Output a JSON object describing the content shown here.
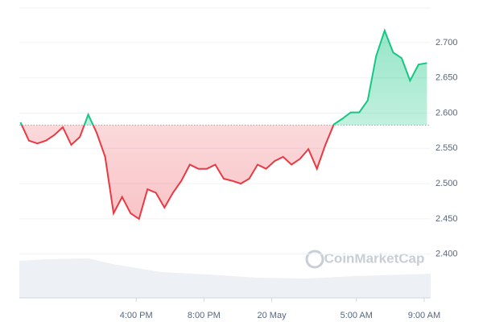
{
  "chart_data": {
    "type": "line",
    "watermark": "CoinMarketCap",
    "x": [
      "19 May 09:10",
      "19 May 09:40",
      "19 May 10:10",
      "19 May 10:40",
      "19 May 11:10",
      "19 May 11:40",
      "19 May 12:10",
      "19 May 12:40",
      "19 May 13:10",
      "19 May 13:40",
      "19 May 14:10",
      "19 May 14:40",
      "19 May 15:10",
      "19 May 15:40",
      "19 May 16:10",
      "19 May 16:40",
      "19 May 17:10",
      "19 May 17:40",
      "19 May 18:10",
      "19 May 18:40",
      "19 May 19:10",
      "19 May 19:40",
      "19 May 20:10",
      "19 May 20:40",
      "19 May 21:10",
      "19 May 21:40",
      "19 May 22:10",
      "19 May 22:40",
      "19 May 23:10",
      "19 May 23:40",
      "20 May 00:10",
      "20 May 00:40",
      "20 May 01:10",
      "20 May 01:40",
      "20 May 02:10",
      "20 May 02:40",
      "20 May 03:10",
      "20 May 03:40",
      "20 May 04:10",
      "20 May 04:40",
      "20 May 05:10",
      "20 May 05:40",
      "20 May 06:10",
      "20 May 06:40",
      "20 May 07:10",
      "20 May 07:40",
      "20 May 08:10",
      "20 May 08:40",
      "20 May 09:10"
    ],
    "series": [
      {
        "name": "Price",
        "color_up": "#16c784",
        "color_down": "#ea3943",
        "values": [
          2.587,
          2.561,
          2.557,
          2.561,
          2.569,
          2.58,
          2.555,
          2.566,
          2.598,
          2.572,
          2.538,
          2.458,
          2.481,
          2.458,
          2.45,
          2.492,
          2.487,
          2.466,
          2.487,
          2.504,
          2.527,
          2.521,
          2.521,
          2.527,
          2.507,
          2.504,
          2.5,
          2.507,
          2.527,
          2.521,
          2.532,
          2.538,
          2.527,
          2.535,
          2.549,
          2.521,
          2.555,
          2.584,
          2.592,
          2.601,
          2.601,
          2.618,
          2.681,
          2.717,
          2.686,
          2.678,
          2.646,
          2.669,
          2.671
        ]
      }
    ],
    "reference": 2.583,
    "xlim": [
      "19 May 09:06",
      "20 May 09:23"
    ],
    "xticks": [
      {
        "value": "19 May 16:00",
        "label": "4:00 PM"
      },
      {
        "value": "19 May 20:00",
        "label": "8:00 PM"
      },
      {
        "value": "20 May 00:00",
        "label": "20 May"
      },
      {
        "value": "20 May 05:00",
        "label": "5:00 AM"
      },
      {
        "value": "20 May 09:00",
        "label": "9:00 AM"
      }
    ],
    "ylim": [
      2.338,
      2.749
    ],
    "yticks": [
      {
        "value": 2.4,
        "label": "2.400"
      },
      {
        "value": 2.45,
        "label": "2.450"
      },
      {
        "value": 2.5,
        "label": "2.500"
      },
      {
        "value": 2.55,
        "label": "2.550"
      },
      {
        "value": 2.6,
        "label": "2.600"
      },
      {
        "value": 2.65,
        "label": "2.650"
      },
      {
        "value": 2.7,
        "label": "2.700"
      }
    ],
    "grid": true
  }
}
